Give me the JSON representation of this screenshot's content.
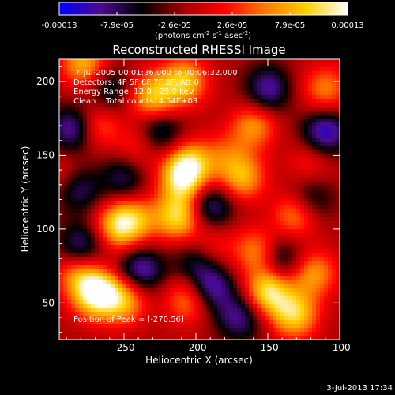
{
  "colors": {
    "background": "#000000",
    "foreground": "#ffffff",
    "colormap": [
      "#0000ff",
      "#4b0b8f",
      "#000000",
      "#a30000",
      "#ff0000",
      "#ff7a00",
      "#ffd100",
      "#ffffff"
    ]
  },
  "colorbar": {
    "tick_labels": [
      "-0.00013",
      "-7.9e-05",
      "-2.6e-05",
      "2.6e-05",
      "7.9e-05",
      "0.00013"
    ],
    "unit_prefix": "(photons cm",
    "unit_exp1": "-2",
    "unit_mid": " s",
    "unit_exp2": "-1",
    "unit_mid2": " asec",
    "unit_exp3": "-2",
    "unit_suffix": ")"
  },
  "plot": {
    "title": "Reconstructed RHESSI Image",
    "annotations": {
      "time_range": "7-Jul-2005 00:01:36.000 to 00:06:32.000",
      "detectors": "Detectors: 4F 5F 6F 7F 8F, Att 0",
      "energy": "Energy Range: 12.0 - 25.0 keV",
      "clean": "Clean    Total counts: 4.54E+03",
      "peak": "Position of Peak = [-270,56]"
    }
  },
  "footer": {
    "timestamp": "3-Jul-2013 17:34"
  },
  "chart_data": {
    "type": "heatmap",
    "title": "Reconstructed RHESSI Image",
    "xlabel": "Heliocentric X (arcsec)",
    "ylabel": "Heliocentric Y (arcsec)",
    "xlim": [
      -295,
      -100
    ],
    "ylim": [
      25,
      215
    ],
    "xticks": [
      -250,
      -200,
      -150,
      -100
    ],
    "yticks": [
      50,
      100,
      150,
      200
    ],
    "xtick_labels": [
      "-250",
      "-200",
      "-150",
      "-100"
    ],
    "ytick_labels": [
      "50",
      "100",
      "150",
      "200"
    ],
    "color_range": [
      -0.00013,
      0.00013
    ],
    "peak_position": [
      -270,
      56
    ],
    "blobs": [
      {
        "x": -270,
        "y": 56,
        "intensity": 1.0
      },
      {
        "x": -250,
        "y": 52,
        "intensity": 0.68
      },
      {
        "x": -282,
        "y": 72,
        "intensity": 0.52
      },
      {
        "x": -255,
        "y": 102,
        "intensity": 0.68
      },
      {
        "x": -242,
        "y": 106,
        "intensity": 0.52
      },
      {
        "x": -212,
        "y": 108,
        "intensity": 0.78
      },
      {
        "x": -205,
        "y": 143,
        "intensity": 0.78
      },
      {
        "x": -210,
        "y": 132,
        "intensity": 0.58
      },
      {
        "x": -150,
        "y": 57,
        "intensity": 0.85
      },
      {
        "x": -131,
        "y": 42,
        "intensity": 0.75
      },
      {
        "x": -118,
        "y": 70,
        "intensity": 0.58
      },
      {
        "x": -158,
        "y": 85,
        "intensity": 0.52
      },
      {
        "x": -130,
        "y": 110,
        "intensity": 0.58
      },
      {
        "x": -168,
        "y": 135,
        "intensity": 0.62
      },
      {
        "x": -205,
        "y": 52,
        "intensity": 0.55
      },
      {
        "x": -190,
        "y": 90,
        "intensity": 0.35
      },
      {
        "x": -230,
        "y": 190,
        "intensity": 0.7
      },
      {
        "x": -208,
        "y": 200,
        "intensity": 0.7
      },
      {
        "x": -160,
        "y": 170,
        "intensity": 0.55
      },
      {
        "x": -270,
        "y": 170,
        "intensity": 0.5
      },
      {
        "x": -278,
        "y": 212,
        "intensity": 0.65
      },
      {
        "x": -110,
        "y": 195,
        "intensity": 0.5
      },
      {
        "x": -240,
        "y": 155,
        "intensity": 0.35
      },
      {
        "x": -180,
        "y": 150,
        "intensity": 0.3
      },
      {
        "x": -290,
        "y": 135,
        "intensity": 0.35
      },
      {
        "x": -120,
        "y": 145,
        "intensity": 0.3
      },
      {
        "x": -285,
        "y": 168,
        "intensity": -0.7
      },
      {
        "x": -283,
        "y": 128,
        "intensity": -0.6
      },
      {
        "x": -280,
        "y": 88,
        "intensity": -0.6
      },
      {
        "x": -238,
        "y": 72,
        "intensity": -0.65
      },
      {
        "x": -190,
        "y": 60,
        "intensity": -0.65
      },
      {
        "x": -190,
        "y": 115,
        "intensity": -0.6
      },
      {
        "x": -170,
        "y": 40,
        "intensity": -0.55
      },
      {
        "x": -140,
        "y": 80,
        "intensity": -0.45
      },
      {
        "x": -110,
        "y": 165,
        "intensity": -0.7
      },
      {
        "x": -120,
        "y": 120,
        "intensity": -0.45
      },
      {
        "x": -150,
        "y": 195,
        "intensity": -0.6
      },
      {
        "x": -250,
        "y": 135,
        "intensity": -0.45
      },
      {
        "x": -225,
        "y": 165,
        "intensity": -0.5
      },
      {
        "x": -260,
        "y": 195,
        "intensity": -0.4
      },
      {
        "x": -200,
        "y": 80,
        "intensity": -0.4
      }
    ]
  }
}
